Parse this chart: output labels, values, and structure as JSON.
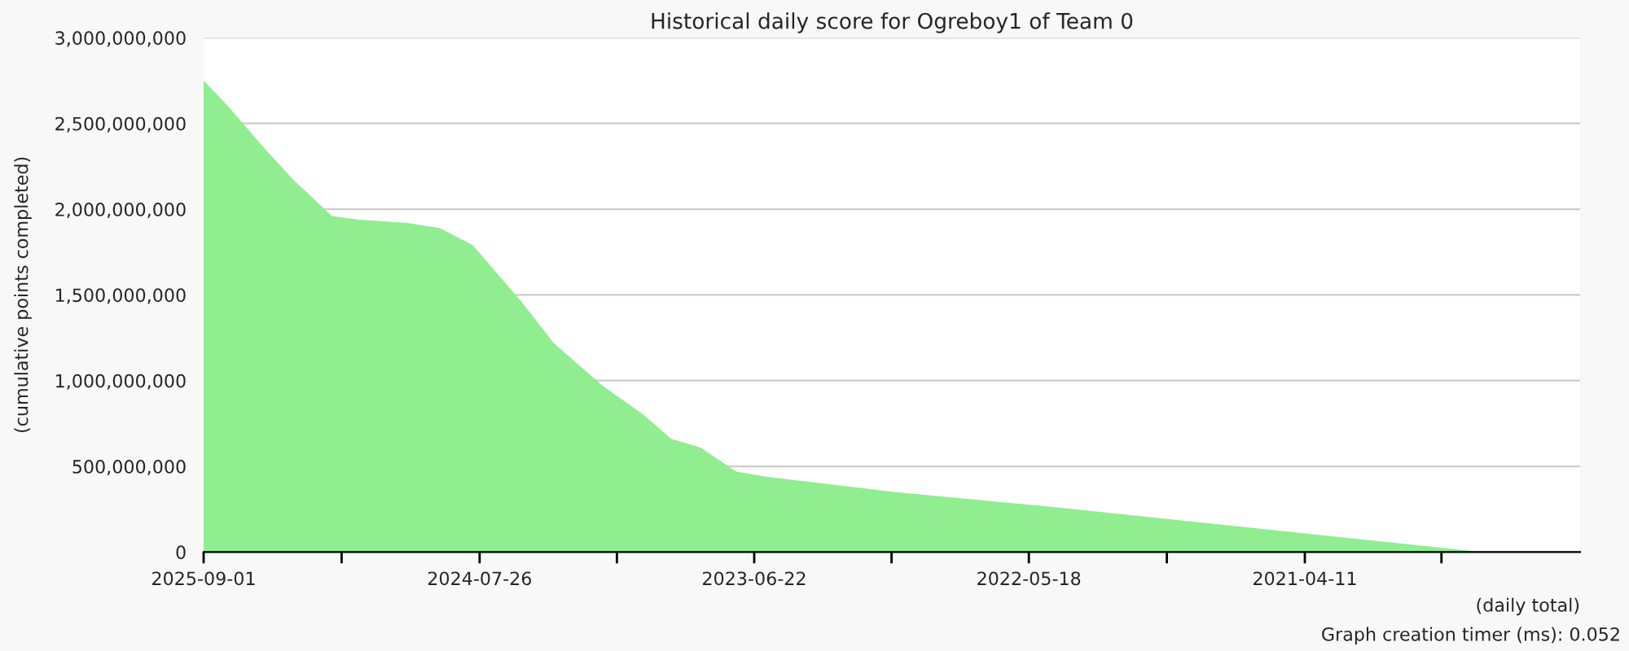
{
  "chart_data": {
    "type": "area",
    "title": "Historical daily score for Ogreboy1 of Team 0",
    "xlabel": "(daily total)",
    "ylabel": "(cumulative points completed)",
    "annotations": [
      "Graph creation timer (ms): 0.052"
    ],
    "x": [
      "2025-09-01",
      "2025-07-27",
      "2025-06-10",
      "2025-04-23",
      "2025-02-26",
      "2025-01-19",
      "2024-11-08",
      "2024-09-22",
      "2024-08-05",
      "2024-05-26",
      "2024-04-09",
      "2024-01-29",
      "2023-11-30",
      "2023-10-21",
      "2023-09-08",
      "2023-07-18",
      "2023-06-05",
      "2022-11-28",
      "2022-04-04",
      "2021-08-10",
      "2020-12-16",
      "2020-08-19",
      "2020-07-26"
    ],
    "series": [
      {
        "color": "#90ee90",
        "values": [
          2750000000,
          2600000000,
          2380000000,
          2170000000,
          1960000000,
          1940000000,
          1920000000,
          1890000000,
          1790000000,
          1460000000,
          1220000000,
          970000000,
          800000000,
          660000000,
          610000000,
          470000000,
          440000000,
          350000000,
          260000000,
          160000000,
          60000000,
          10000000,
          0
        ]
      }
    ],
    "xlim": [
      "2025-09-01",
      "2020-03-06"
    ],
    "xticks": [
      {
        "value": "2025-09-01",
        "label": "2025-09-01"
      },
      {
        "value": "2025-02-12",
        "label": null
      },
      {
        "value": "2024-07-26",
        "label": "2024-07-26"
      },
      {
        "value": "2024-01-08",
        "label": null
      },
      {
        "value": "2023-06-22",
        "label": "2023-06-22"
      },
      {
        "value": "2022-12-04",
        "label": null
      },
      {
        "value": "2022-05-18",
        "label": "2022-05-18"
      },
      {
        "value": "2021-10-29",
        "label": null
      },
      {
        "value": "2021-04-11",
        "label": "2021-04-11"
      },
      {
        "value": "2020-09-24",
        "label": null
      }
    ],
    "ylim": [
      0,
      3000000000
    ],
    "yticks": [
      {
        "value": 0,
        "label": "0"
      },
      {
        "value": 500000000,
        "label": "500,000,000"
      },
      {
        "value": 1000000000,
        "label": "1,000,000,000"
      },
      {
        "value": 1500000000,
        "label": "1,500,000,000"
      },
      {
        "value": 2000000000,
        "label": "2,000,000,000"
      },
      {
        "value": 2500000000,
        "label": "2,500,000,000"
      },
      {
        "value": 3000000000,
        "label": "3,000,000,000"
      }
    ],
    "grid": "y",
    "legend": false
  }
}
